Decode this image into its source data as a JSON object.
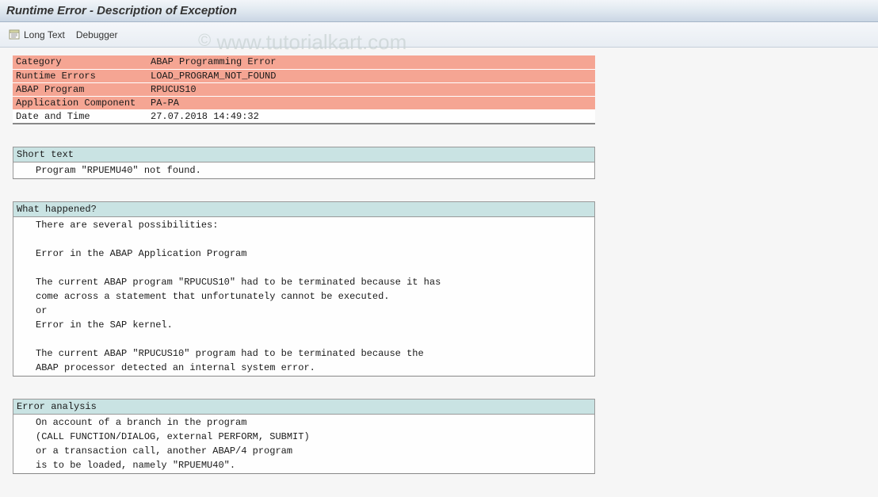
{
  "title": "Runtime Error - Description of Exception",
  "toolbar": {
    "long_text_label": "Long Text",
    "debugger_label": "Debugger"
  },
  "info": {
    "rows": [
      {
        "label": "Category",
        "value": "ABAP Programming Error",
        "style": "red"
      },
      {
        "label": "Runtime Errors",
        "value": "LOAD_PROGRAM_NOT_FOUND",
        "style": "red"
      },
      {
        "label": "ABAP Program",
        "value": "RPUCUS10",
        "style": "red"
      },
      {
        "label": "Application Component",
        "value": "PA-PA",
        "style": "red"
      },
      {
        "label": "Date and Time",
        "value": "27.07.2018 14:49:32",
        "style": "white"
      }
    ]
  },
  "sections": [
    {
      "header": "Short text",
      "lines": [
        "Program \"RPUEMU40\" not found."
      ]
    },
    {
      "header": "What happened?",
      "lines": [
        "There are several possibilities:",
        "",
        "Error in the ABAP Application Program",
        "",
        "The current ABAP program \"RPUCUS10\" had to be terminated because it has",
        "come across a statement that unfortunately cannot be executed.",
        "or",
        "Error in the SAP kernel.",
        "",
        "The current ABAP \"RPUCUS10\" program had to be terminated because the",
        "ABAP processor detected an internal system error."
      ]
    },
    {
      "header": "Error analysis",
      "lines": [
        "On account of a branch in the program",
        "(CALL FUNCTION/DIALOG, external PERFORM, SUBMIT)",
        "or a transaction call, another ABAP/4 program",
        "is to be loaded, namely \"RPUEMU40\"."
      ]
    }
  ],
  "watermark": "© www.tutorialkart.com",
  "colors": {
    "title_gradient_top": "#f2f5f9",
    "title_gradient_bottom": "#cad6e4",
    "toolbar_bg": "#e8edf3",
    "red_row": "#f5a593",
    "section_header": "#c9e3e3",
    "body_bg": "#f6f6f6"
  }
}
